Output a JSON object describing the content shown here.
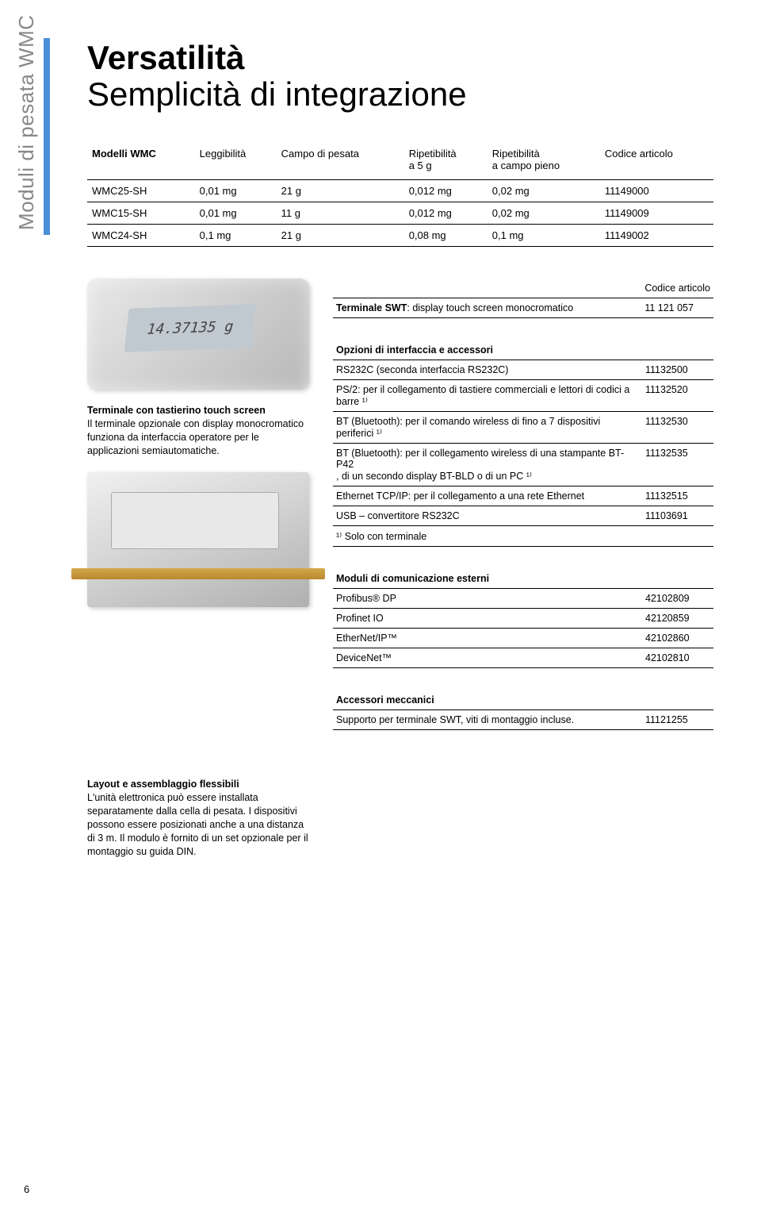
{
  "sidebar": "Moduli di pesata WMC",
  "title_line1": "Versatilità",
  "title_line2": "Semplicità di integrazione",
  "main_table": {
    "headers": [
      "Modelli WMC",
      "Leggibilità",
      "Campo di pesata",
      "Ripetibilità\na 5 g",
      "Ripetibilità\na campo pieno",
      "Codice articolo"
    ],
    "rows": [
      [
        "WMC25-SH",
        "0,01 mg",
        "21 g",
        "0,012 mg",
        "0,02 mg",
        "11149000"
      ],
      [
        "WMC15-SH",
        "0,01 mg",
        "11 g",
        "0,012 mg",
        "0,02 mg",
        "11149009"
      ],
      [
        "WMC24-SH",
        "0,1 mg",
        "21 g",
        "0,08 mg",
        "0,1 mg",
        "11149002"
      ]
    ]
  },
  "terminal_table": {
    "header_right": "Codice articolo",
    "rows": [
      {
        "label": "Terminale SWT: display touch screen monocromatico",
        "code": "11 121 057",
        "bold_prefix": "Terminale SWT"
      }
    ]
  },
  "options_table": {
    "header": "Opzioni di interfaccia e accessori",
    "rows": [
      {
        "label": "RS232C (seconda interfaccia RS232C)",
        "code": "11132500"
      },
      {
        "label": "PS/2: per il collegamento di tastiere commerciali e lettori di codici a barre ¹⁾",
        "code": "11132520"
      },
      {
        "label": "BT (Bluetooth): per il comando wireless di fino a 7 dispositivi periferici ¹⁾",
        "code": "11132530"
      },
      {
        "label": "BT (Bluetooth): per il collegamento wireless di una stampante BT-P42\n, di un secondo display BT-BLD o di un PC ¹⁾",
        "code": "11132535"
      },
      {
        "label": "Ethernet TCP/IP: per il collegamento a una rete Ethernet",
        "code": "11132515"
      },
      {
        "label": "USB – convertitore RS232C",
        "code": "11103691"
      },
      {
        "label": "¹⁾ Solo con terminale",
        "code": ""
      }
    ]
  },
  "comm_table": {
    "header": "Moduli di comunicazione esterni",
    "rows": [
      {
        "label": "Profibus® DP",
        "code": "42102809"
      },
      {
        "label": "Profinet IO",
        "code": "42120859"
      },
      {
        "label": "EtherNet/IP™",
        "code": "42102860"
      },
      {
        "label": "DeviceNet™",
        "code": "42102810"
      }
    ]
  },
  "acc_table": {
    "header": "Accessori meccanici",
    "rows": [
      {
        "label": "Supporto per terminale SWT, viti di montaggio incluse.",
        "code": "11121255"
      }
    ]
  },
  "left_block1": {
    "heading": "Terminale con tastierino touch screen",
    "body": "Il terminale opzionale con display monocromatico funziona da interfaccia operatore per le applicazioni semiautomatiche."
  },
  "left_block2": {
    "heading": "Layout e assemblaggio flessibili",
    "body": "L'unità elettronica può essere installata separatamente dalla cella di pesata. I dispositivi possono essere posizionati anche a una distanza di 3 m. Il modulo è fornito di un set opzionale per il montaggio su guida DIN."
  },
  "page_number": "6"
}
